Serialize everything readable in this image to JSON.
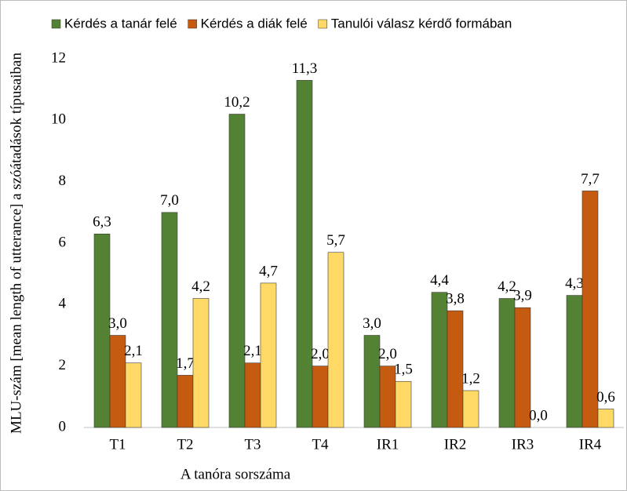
{
  "chart_data": {
    "type": "bar",
    "x_label": "A tanóra sorszáma",
    "y_label": "MLU-szám [mean length of utterance] a szóátadások típusaiban",
    "categories": [
      "T1",
      "T2",
      "T3",
      "T4",
      "IR1",
      "IR2",
      "IR3",
      "IR4"
    ],
    "series": [
      {
        "name": "Kérdés a tanár felé",
        "color": "#548235",
        "values": [
          6.3,
          7.0,
          10.2,
          11.3,
          3.0,
          4.4,
          4.2,
          4.3
        ],
        "value_labels": [
          "6,3",
          "7,0",
          "10,2",
          "11,3",
          "3,0",
          "4,4",
          "4,2",
          "4,3"
        ]
      },
      {
        "name": "Kérdés a diák felé",
        "color": "#c55a11",
        "values": [
          3.0,
          1.7,
          2.1,
          2.0,
          2.0,
          3.8,
          3.9,
          7.7
        ],
        "value_labels": [
          "3,0",
          "1,7",
          "2,1",
          "2,0",
          "2,0",
          "3,8",
          "3,9",
          "7,7"
        ]
      },
      {
        "name": "Tanulói válasz kérdő formában",
        "color": "#ffd966",
        "values": [
          2.1,
          4.2,
          4.7,
          5.7,
          1.5,
          1.2,
          0.0,
          0.6
        ],
        "value_labels": [
          "2,1",
          "4,2",
          "4,7",
          "5,7",
          "1,5",
          "1,2",
          "0,0",
          "0,6"
        ]
      }
    ],
    "ylim": [
      0,
      12
    ],
    "yticks": [
      0,
      2,
      4,
      6,
      8,
      10,
      12
    ],
    "grid": false,
    "legend": "top"
  }
}
